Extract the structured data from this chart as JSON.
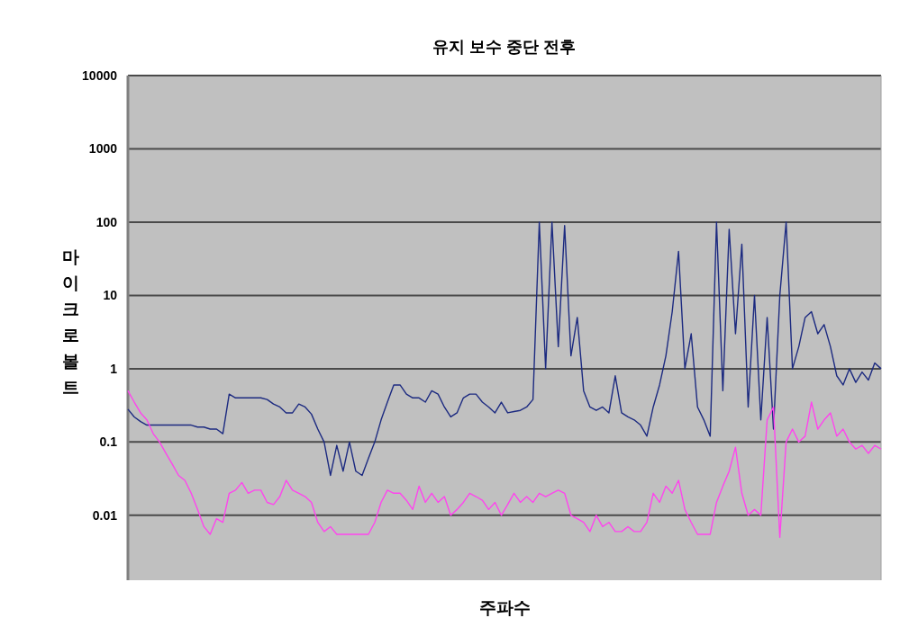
{
  "chart_data": {
    "type": "line",
    "title": "유지 보수 중단 전후",
    "xlabel": "주파수",
    "ylabel": "마이크로볼트",
    "log": "y",
    "grid": "y",
    "tick_labels": "y",
    "ylim": [
      0.0013,
      10000
    ],
    "yticks": [
      0.01,
      0.1,
      1,
      10,
      100,
      1000,
      10000
    ],
    "categories": [
      null,
      null,
      null,
      null,
      null,
      null,
      null,
      null,
      null,
      null,
      null,
      null,
      null,
      null,
      null,
      null,
      null,
      null,
      null,
      null,
      null,
      null,
      null,
      null,
      null,
      null,
      null,
      null,
      null,
      null,
      null,
      null,
      null,
      null,
      null,
      null,
      null,
      null,
      null,
      null,
      null,
      null,
      null,
      null,
      null,
      null,
      null,
      null,
      null,
      null,
      null,
      null,
      null,
      null,
      null,
      null,
      null,
      null,
      null,
      null,
      null,
      null,
      null,
      null,
      null,
      null,
      null,
      null,
      null,
      null,
      null,
      null,
      null,
      null,
      null,
      null,
      null,
      null,
      null,
      null,
      null,
      null,
      null,
      null,
      null,
      null,
      null,
      null,
      null,
      null,
      null,
      null,
      null,
      null,
      null,
      null,
      null,
      null,
      null,
      null,
      null,
      null,
      null,
      null,
      null,
      null,
      null,
      null,
      null,
      null,
      null,
      null,
      null,
      null,
      null,
      null,
      null,
      null,
      null,
      null
    ],
    "series": [
      {
        "color": "#1c2a80",
        "values": [
          0.28,
          0.22,
          0.19,
          0.17,
          0.17,
          0.17,
          0.17,
          0.17,
          0.17,
          0.17,
          0.17,
          0.16,
          0.16,
          0.15,
          0.15,
          0.13,
          0.45,
          0.4,
          0.4,
          0.4,
          0.4,
          0.4,
          0.38,
          0.33,
          0.3,
          0.25,
          0.25,
          0.33,
          0.3,
          0.24,
          0.15,
          0.1,
          0.035,
          0.09,
          0.04,
          0.1,
          0.04,
          0.035,
          0.06,
          0.1,
          0.2,
          0.35,
          0.6,
          0.6,
          0.45,
          0.4,
          0.4,
          0.35,
          0.5,
          0.45,
          0.3,
          0.22,
          0.25,
          0.4,
          0.45,
          0.45,
          0.35,
          0.3,
          0.25,
          0.35,
          0.25,
          0.26,
          0.27,
          0.3,
          0.38,
          100,
          1,
          100,
          2,
          90,
          1.5,
          5,
          0.5,
          0.3,
          0.27,
          0.3,
          0.25,
          0.8,
          0.25,
          0.22,
          0.2,
          0.17,
          0.12,
          0.3,
          0.6,
          1.5,
          6,
          40,
          1,
          3,
          0.3,
          0.2,
          0.12,
          100,
          0.5,
          80,
          3,
          50,
          0.3,
          10,
          0.2,
          5,
          0.15,
          10,
          100,
          1,
          2,
          5,
          6,
          3,
          4,
          2,
          0.8,
          0.6,
          1,
          0.65,
          0.9,
          0.7,
          1.2,
          1
        ]
      },
      {
        "color": "#ff44ee",
        "values": [
          0.5,
          0.35,
          0.25,
          0.2,
          0.13,
          0.1,
          0.07,
          0.05,
          0.035,
          0.03,
          0.02,
          0.012,
          0.007,
          0.0055,
          0.009,
          0.008,
          0.02,
          0.022,
          0.028,
          0.02,
          0.022,
          0.022,
          0.015,
          0.014,
          0.018,
          0.03,
          0.022,
          0.02,
          0.018,
          0.015,
          0.008,
          0.006,
          0.007,
          0.0055,
          0.0055,
          0.0055,
          0.0055,
          0.0055,
          0.0055,
          0.008,
          0.015,
          0.022,
          0.02,
          0.02,
          0.016,
          0.012,
          0.025,
          0.015,
          0.02,
          0.015,
          0.018,
          0.01,
          0.012,
          0.015,
          0.02,
          0.018,
          0.016,
          0.012,
          0.015,
          0.01,
          0.014,
          0.02,
          0.015,
          0.018,
          0.015,
          0.02,
          0.018,
          0.02,
          0.022,
          0.02,
          0.01,
          0.009,
          0.008,
          0.006,
          0.01,
          0.007,
          0.008,
          0.006,
          0.006,
          0.007,
          0.006,
          0.006,
          0.008,
          0.02,
          0.015,
          0.025,
          0.02,
          0.03,
          0.012,
          0.008,
          0.0055,
          0.0055,
          0.0055,
          0.015,
          0.025,
          0.04,
          0.085,
          0.02,
          0.01,
          0.012,
          0.01,
          0.2,
          0.3,
          0.005,
          0.1,
          0.15,
          0.1,
          0.12,
          0.35,
          0.15,
          0.2,
          0.25,
          0.12,
          0.15,
          0.1,
          0.08,
          0.09,
          0.07,
          0.09,
          0.08
        ]
      }
    ]
  }
}
